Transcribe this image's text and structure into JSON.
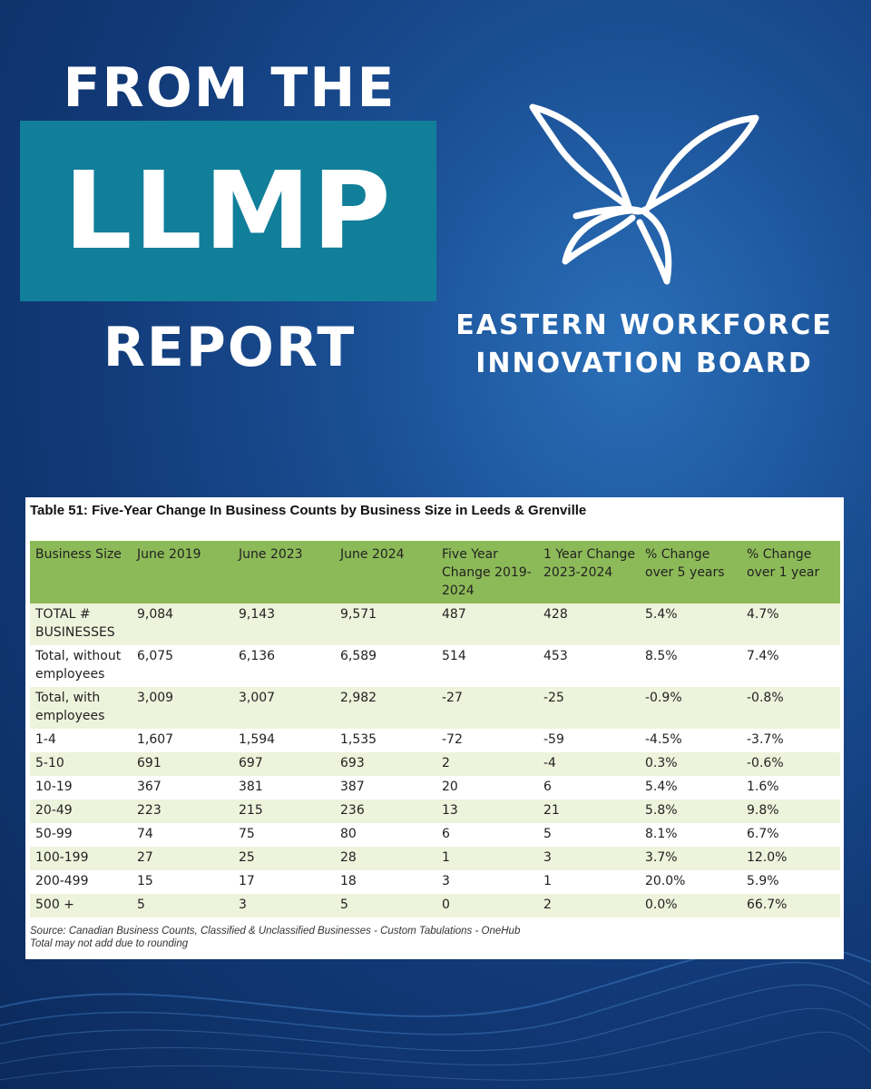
{
  "header": {
    "line1": "FROM THE",
    "line2": "LLMP",
    "line3": "REPORT"
  },
  "org": {
    "name_line1": "EASTERN WORKFORCE",
    "name_line2": "INNOVATION BOARD",
    "logo_icon": "butterfly-icon"
  },
  "colors": {
    "background": "#1a4f94",
    "accent_box": "#117f9a",
    "table_header": "#8dba58",
    "row_alt": "#eef3dc"
  },
  "table": {
    "title": "Table 51: Five-Year Change In Business Counts by Business Size in Leeds & Grenville",
    "columns": [
      "Business Size",
      "June 2019",
      "June 2023",
      "June 2024",
      "Five Year Change 2019-2024",
      "1 Year Change 2023-2024",
      "% Change over 5 years",
      "% Change over 1 year"
    ],
    "rows": [
      [
        "TOTAL # BUSINESSES",
        "9,084",
        "9,143",
        "9,571",
        "487",
        "428",
        "5.4%",
        "4.7%"
      ],
      [
        "Total, without employees",
        "6,075",
        "6,136",
        "6,589",
        "514",
        "453",
        "8.5%",
        "7.4%"
      ],
      [
        "Total, with employees",
        "3,009",
        "3,007",
        "2,982",
        "-27",
        "-25",
        "-0.9%",
        "-0.8%"
      ],
      [
        "1-4",
        "1,607",
        "1,594",
        "1,535",
        "-72",
        "-59",
        "-4.5%",
        "-3.7%"
      ],
      [
        "5-10",
        "691",
        "697",
        "693",
        "2",
        "-4",
        "0.3%",
        "-0.6%"
      ],
      [
        "10-19",
        "367",
        "381",
        "387",
        "20",
        "6",
        "5.4%",
        "1.6%"
      ],
      [
        "20-49",
        "223",
        "215",
        "236",
        "13",
        "21",
        "5.8%",
        "9.8%"
      ],
      [
        "50-99",
        "74",
        "75",
        "80",
        "6",
        "5",
        "8.1%",
        "6.7%"
      ],
      [
        "100-199",
        "27",
        "25",
        "28",
        "1",
        "3",
        "3.7%",
        "12.0%"
      ],
      [
        "200-499",
        "15",
        "17",
        "18",
        "3",
        "1",
        "20.0%",
        "5.9%"
      ],
      [
        "500 +",
        "5",
        "3",
        "5",
        "0",
        "2",
        "0.0%",
        "66.7%"
      ]
    ],
    "source_line1": "Source: Canadian Business Counts, Classified & Unclassified Businesses - Custom Tabulations - OneHub",
    "source_line2": "Total may not add due to rounding"
  }
}
